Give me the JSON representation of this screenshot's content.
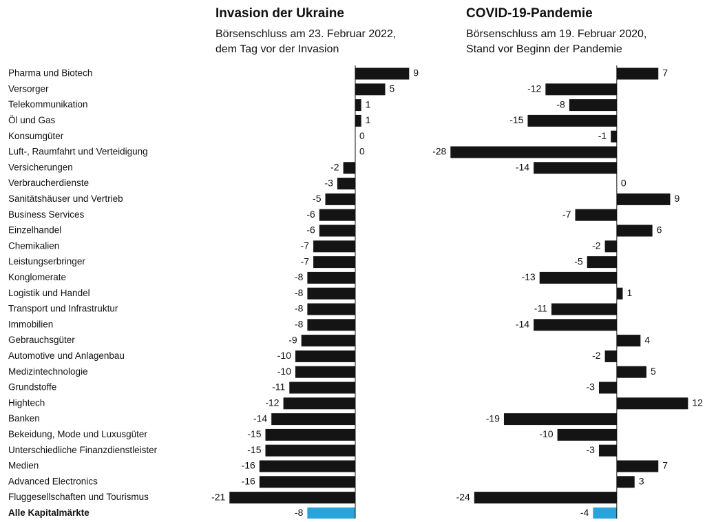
{
  "chart_data": {
    "type": "bar",
    "orientation": "horizontal",
    "categories": [
      "Pharma und Biotech",
      "Versorger",
      "Telekommunikation",
      "Öl und Gas",
      "Konsumgüter",
      "Luft-, Raumfahrt und Verteidigung",
      "Versicherungen",
      "Verbraucherdienste",
      "Sanitätshäuser und Vertrieb",
      "Business Services",
      "Einzelhandel",
      "Chemikalien",
      "Leistungserbringer",
      "Konglomerate",
      "Logistik und Handel",
      "Transport und Infrastruktur",
      "Immobilien",
      "Gebrauchsgüter",
      "Automotive und Anlagenbau",
      "Medizintechnologie",
      "Grundstoffe",
      "Hightech",
      "Banken",
      "Bekeidung, Mode und Luxusgüter",
      "Unterschiedliche Finanzdienstleister",
      "Medien",
      "Advanced Electronics",
      "Fluggesellschaften und Tourismus",
      "Alle Kapitalmärkte"
    ],
    "color": "#141414",
    "total_color": "#29a3dc",
    "panels": [
      {
        "title": "Invasion der Ukraine",
        "subtitle": [
          "Börsenschluss am 23. Februar 2022,",
          "dem Tag vor der Invasion"
        ],
        "values": [
          9,
          5,
          1,
          1,
          0,
          0,
          -2,
          -3,
          -5,
          -6,
          -6,
          -7,
          -7,
          -8,
          -8,
          -8,
          -8,
          -9,
          -10,
          -10,
          -11,
          -12,
          -14,
          -15,
          -15,
          -16,
          -16,
          -21,
          -8
        ],
        "xlim": [
          -22,
          10
        ]
      },
      {
        "title": "COVID-19-Pandemie",
        "subtitle": [
          "Börsenschluss am 19. Februar 2020,",
          "Stand vor Beginn der Pandemie"
        ],
        "values": [
          7,
          -12,
          -8,
          -15,
          -1,
          -28,
          -14,
          0,
          9,
          -7,
          6,
          -2,
          -5,
          -13,
          1,
          -11,
          -14,
          4,
          -2,
          5,
          -3,
          12,
          -19,
          -10,
          -3,
          7,
          3,
          -24,
          -4
        ],
        "xlim": [
          -29,
          13
        ]
      }
    ]
  }
}
